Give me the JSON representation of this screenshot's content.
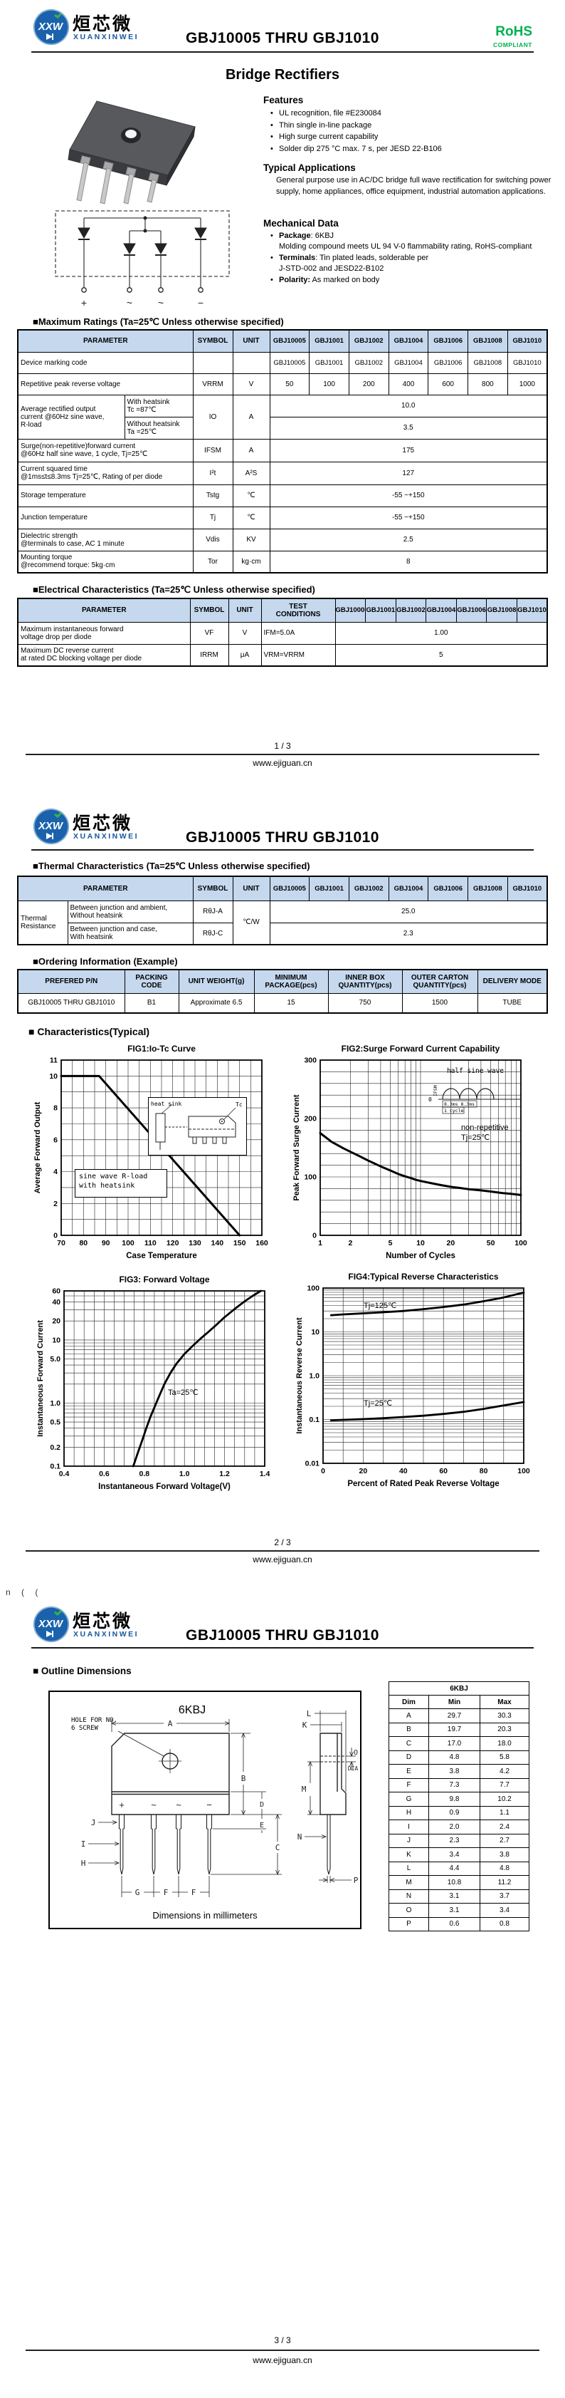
{
  "doc": {
    "brand": {
      "logo_text": "XXW",
      "company_cn": "烜芯微",
      "company_en": "XUANXINWEI"
    },
    "title": "GBJ10005 THRU GBJ1010",
    "rohs": {
      "line1": "RoHS",
      "line2": "COMPLIANT"
    },
    "site": "www.ejiguan.cn",
    "pages": {
      "p1": "1 / 3",
      "p2": "2 / 3",
      "p3": "3 / 3"
    }
  },
  "devices": [
    "GBJ10005",
    "GBJ1001",
    "GBJ1002",
    "GBJ1004",
    "GBJ1006",
    "GBJ1008",
    "GBJ1010"
  ],
  "page1": {
    "product_title": "Bridge Rectifiers",
    "features": {
      "heading": "Features",
      "items": [
        "UL recognition, file #E230084",
        "Thin single in-line package",
        "High surge current capability",
        "Solder dip 275 °C max. 7 s, per JESD 22-B106"
      ]
    },
    "applications": {
      "heading": "Typical Applications",
      "body": "General purpose use in AC/DC bridge full wave rectification for switching power supply, home appliances, office equipment, industrial automation applications."
    },
    "mechanical": {
      "heading": "Mechanical Data",
      "items": [
        {
          "label": "Package",
          "text": ": 6KBJ\nMolding compound meets UL 94 V-0 flammability rating, RoHS-compliant"
        },
        {
          "label": "Terminals",
          "text": ": Tin plated leads, solderable per\nJ-STD-002 and JESD22-B102"
        },
        {
          "label": "Polarity:",
          "text": " As marked on body"
        }
      ]
    },
    "circuit_pins": [
      "+",
      "~",
      "~",
      "−"
    ],
    "max_ratings": {
      "heading": "■Maximum Ratings (Ta=25℃ Unless otherwise specified)",
      "col_headers": {
        "parameter": "PARAMETER",
        "symbol": "SYMBOL",
        "unit": "UNIT"
      },
      "marking": {
        "param": "Device marking code"
      },
      "vrrm": {
        "param": "Repetitive peak reverse voltage",
        "symbol": "VRRM",
        "unit": "V",
        "values": [
          "50",
          "100",
          "200",
          "400",
          "600",
          "800",
          "1000"
        ]
      },
      "io": {
        "param": "Average rectified output\ncurrent  @60Hz sine wave,\nR-load",
        "sub1_line1": "With heatsink",
        "sub1_line2": "Tc =87℃",
        "sub2_line1": "Without heatsink",
        "sub2_line2": "Ta =25℃",
        "symbol": "IO",
        "unit": "A",
        "value1": "10.0",
        "value2": "3.5"
      },
      "rows": [
        {
          "param": "Surge(non-repetitive)forward current\n@60Hz half sine wave, 1 cycle, Tj=25℃",
          "symbol": "IFSM",
          "unit": "A",
          "value": "175"
        },
        {
          "param": "Current squared time\n@1ms≤t≤8.3ms Tj=25℃, Rating of per diode",
          "symbol": "I²t",
          "unit": "A²S",
          "value": "127"
        },
        {
          "param": "Storage temperature",
          "symbol": "Tstg",
          "unit": "℃",
          "value": "-55 ~+150"
        },
        {
          "param": "Junction temperature",
          "symbol": "Tj",
          "unit": "℃",
          "value": "-55 ~+150"
        },
        {
          "param": "Dielectric strength\n@terminals to case, AC 1 minute",
          "symbol": "Vdis",
          "unit": "KV",
          "value": "2.5"
        },
        {
          "param": "Mounting torque\n@recommend torque: 5kg·cm",
          "symbol": "Tor",
          "unit": "kg·cm",
          "value": "8"
        }
      ]
    },
    "electrical": {
      "heading": "■Electrical Characteristics (Ta=25℃ Unless otherwise specified)",
      "col_headers": {
        "parameter": "PARAMETER",
        "symbol": "SYMBOL",
        "unit": "UNIT",
        "test": "TEST\nCONDITIONS"
      },
      "rows": [
        {
          "param": "Maximum instantaneous forward\nvoltage drop per diode",
          "symbol": "VF",
          "unit": "V",
          "test": "IFM=5.0A",
          "value": "1.00"
        },
        {
          "param": "Maximum DC reverse current\nat rated DC blocking voltage per diode",
          "symbol": "IRRM",
          "unit": "μA",
          "test": "VRM=VRRM",
          "value": "5"
        }
      ]
    }
  },
  "page2": {
    "thermal": {
      "heading": "■Thermal Characteristics  (Ta=25℃ Unless otherwise specified)",
      "col_headers": {
        "parameter": "PARAMETER",
        "symbol": "SYMBOL",
        "unit": "UNIT"
      },
      "group": "Thermal\nResistance",
      "unit": "℃/W",
      "rows": [
        {
          "desc": "Between junction and ambient,\nWithout heatsink",
          "symbol": "RθJ-A",
          "value": "25.0"
        },
        {
          "desc": "Between junction and case,\nWith heatsink",
          "symbol": "RθJ-C",
          "value": "2.3"
        }
      ]
    },
    "ordering": {
      "heading": "■Ordering Information (Example)",
      "headers": [
        "PREFERED P/N",
        "PACKING\nCODE",
        "UNIT WEIGHT(g)",
        "MINIMUM\nPACKAGE(pcs)",
        "INNER BOX\nQUANTITY(pcs)",
        "OUTER CARTON\nQUANTITY(pcs)",
        "DELIVERY MODE"
      ],
      "row": [
        "GBJ10005 THRU GBJ1010",
        "B1",
        "Approximate 6.5",
        "15",
        "750",
        "1500",
        "TUBE"
      ]
    },
    "char_heading": "■ Characteristics(Typical)"
  },
  "chart_data": [
    {
      "id": "fig1",
      "type": "line",
      "title": "FIG1:Io-Tc Curve",
      "xlabel": "Case Temperature",
      "ylabel": "Average Forward Output",
      "xscale": "linear",
      "yscale": "linear",
      "xlim": [
        70,
        160
      ],
      "ylim": [
        0,
        11
      ],
      "xticks": [
        70,
        80,
        90,
        100,
        110,
        120,
        130,
        140,
        150,
        160
      ],
      "xtick_labels": [
        "70",
        "80",
        "90",
        "100",
        "110",
        "120",
        "130",
        "140",
        "150",
        "160"
      ],
      "yticks": [
        0,
        2,
        4,
        6,
        8,
        10,
        11
      ],
      "ytick_labels": [
        "0",
        "2",
        "4",
        "6",
        "8",
        "10",
        "11"
      ],
      "xgrid": {
        "type": "linear",
        "step": 5
      },
      "ygrid": {
        "type": "linear",
        "step": 1
      },
      "lw": 3,
      "series": [
        {
          "name": "average forward output current",
          "points": [
            [
              70,
              10
            ],
            [
              87,
              10
            ],
            [
              150,
              0
            ]
          ]
        }
      ],
      "annotations": {
        "box_line1": "sine wave R-load",
        "box_line2": "with heatsink",
        "heatsink": "heat sink",
        "tc": "Tc"
      }
    },
    {
      "id": "fig2",
      "type": "line",
      "title": "FIG2:Surge Forward Current Capability",
      "xlabel": "Number of Cycles",
      "ylabel": "Peak Forward Surge Current",
      "xscale": "log",
      "yscale": "linear",
      "xlim": [
        1,
        100
      ],
      "ylim": [
        0,
        300
      ],
      "xticks": [
        1,
        2,
        5,
        10,
        20,
        50,
        100
      ],
      "xtick_labels": [
        "1",
        "2",
        "5",
        "10",
        "20",
        "50",
        "100"
      ],
      "yticks": [
        0,
        100,
        200,
        300
      ],
      "ytick_labels": [
        "0",
        "100",
        "200",
        "300"
      ],
      "xgrid": {
        "type": "log"
      },
      "ygrid": {
        "type": "linear",
        "step": 20
      },
      "lw": 3,
      "series": [
        {
          "name": "IFSM",
          "points": [
            [
              1,
              175
            ],
            [
              1.3,
              160
            ],
            [
              1.7,
              149
            ],
            [
              2,
              143
            ],
            [
              2.5,
              135
            ],
            [
              3,
              128
            ],
            [
              4,
              118
            ],
            [
              5,
              111
            ],
            [
              6,
              105
            ],
            [
              7,
              101
            ],
            [
              8,
              98
            ],
            [
              9,
              95
            ],
            [
              10,
              93
            ],
            [
              13,
              89
            ],
            [
              16,
              86
            ],
            [
              20,
              83
            ],
            [
              25,
              81
            ],
            [
              30,
              79
            ],
            [
              40,
              77
            ],
            [
              50,
              75
            ],
            [
              65,
              72.5
            ],
            [
              80,
              71
            ],
            [
              100,
              69
            ]
          ]
        }
      ],
      "annotations": {
        "inset_title": "half sine wave",
        "ifsm": "IFSM",
        "ms": "8.3ms 8.3ms",
        "cycle": "1 cycle",
        "zero": "0",
        "note1": "non-repetitive",
        "note2": "Tj=25℃"
      }
    },
    {
      "id": "fig3",
      "type": "line",
      "title": "FIG3: Forward Voltage",
      "xlabel": "Instantaneous Forward Voltage(V)",
      "ylabel": "Instantaneous Forward Current",
      "xscale": "linear",
      "yscale": "log",
      "xlim": [
        0.4,
        1.4
      ],
      "ylim": [
        0.1,
        60
      ],
      "xticks": [
        0.4,
        0.6,
        0.8,
        1.0,
        1.2,
        1.4
      ],
      "xtick_labels": [
        "0.4",
        "0.6",
        "0.8",
        "1.0",
        "1.2",
        "1.4"
      ],
      "yticks": [
        0.1,
        0.2,
        0.5,
        1,
        5,
        10,
        20,
        40,
        60
      ],
      "ytick_labels": [
        "0.1",
        "0.2",
        "0.5",
        "1.0",
        "5.0",
        "10",
        "20",
        "40",
        "60"
      ],
      "xgrid": {
        "type": "linear",
        "step": 0.05
      },
      "ygrid": {
        "type": "log"
      },
      "lw": 2.8,
      "series": [
        {
          "name": "VF @ Ta=25℃",
          "points": [
            [
              0.745,
              0.1
            ],
            [
              0.77,
              0.17
            ],
            [
              0.79,
              0.26
            ],
            [
              0.81,
              0.4
            ],
            [
              0.83,
              0.6
            ],
            [
              0.85,
              0.85
            ],
            [
              0.87,
              1.2
            ],
            [
              0.9,
              2.0
            ],
            [
              0.93,
              3.0
            ],
            [
              0.96,
              4.2
            ],
            [
              1.0,
              6.0
            ],
            [
              1.04,
              8.0
            ],
            [
              1.08,
              10.5
            ],
            [
              1.12,
              13.5
            ],
            [
              1.16,
              17.5
            ],
            [
              1.2,
              23
            ],
            [
              1.25,
              31
            ],
            [
              1.3,
              41
            ],
            [
              1.34,
              50
            ],
            [
              1.38,
              60
            ]
          ]
        }
      ],
      "annotations": {
        "note": "Ta=25℃"
      }
    },
    {
      "id": "fig4",
      "type": "line",
      "title": "FIG4:Typical Reverse Characteristics",
      "xlabel": "Percent of Rated Peak Reverse Voltage",
      "ylabel": "Instantaneous Reverse Current",
      "xscale": "linear",
      "yscale": "log",
      "xlim": [
        0,
        100
      ],
      "ylim": [
        0.01,
        100
      ],
      "xticks": [
        0,
        20,
        40,
        60,
        80,
        100
      ],
      "xtick_labels": [
        "0",
        "20",
        "40",
        "60",
        "80",
        "100"
      ],
      "yticks": [
        0.01,
        0.1,
        1,
        10,
        100
      ],
      "ytick_labels": [
        "0.01",
        "0.1",
        "1.0",
        "10",
        "100"
      ],
      "xgrid": {
        "type": "linear",
        "step": 10
      },
      "ygrid": {
        "type": "log"
      },
      "lw": 2.8,
      "series": [
        {
          "name": "Tj=125℃",
          "points": [
            [
              4,
              24
            ],
            [
              10,
              25
            ],
            [
              20,
              26.5
            ],
            [
              30,
              28
            ],
            [
              40,
              30
            ],
            [
              50,
              33
            ],
            [
              60,
              37
            ],
            [
              70,
              42
            ],
            [
              80,
              50
            ],
            [
              90,
              61
            ],
            [
              100,
              79
            ]
          ]
        },
        {
          "name": "Tj=25℃",
          "points": [
            [
              4,
              0.096
            ],
            [
              10,
              0.098
            ],
            [
              20,
              0.102
            ],
            [
              30,
              0.107
            ],
            [
              40,
              0.114
            ],
            [
              50,
              0.122
            ],
            [
              60,
              0.134
            ],
            [
              70,
              0.15
            ],
            [
              80,
              0.175
            ],
            [
              90,
              0.21
            ],
            [
              100,
              0.25
            ]
          ]
        }
      ],
      "annotations": {
        "hot": "Tj=125℃",
        "cold": "Tj=25℃"
      }
    }
  ],
  "page3": {
    "outline": {
      "heading": "■ Outline Dimensions",
      "package": "6KBJ",
      "hole_note_line1": "HOLE FOR NO.",
      "hole_note_line2": "6 SCREW",
      "dia_label": "DIA",
      "caption": "Dimensions in millimeters",
      "table_title": "6KBJ",
      "col_headers": [
        "Dim",
        "Min",
        "Max"
      ],
      "rows": [
        {
          "dim": "A",
          "min": "29.7",
          "max": "30.3"
        },
        {
          "dim": "B",
          "min": "19.7",
          "max": "20.3"
        },
        {
          "dim": "C",
          "min": "17.0",
          "max": "18.0"
        },
        {
          "dim": "D",
          "min": "4.8",
          "max": "5.8"
        },
        {
          "dim": "E",
          "min": "3.8",
          "max": "4.2"
        },
        {
          "dim": "F",
          "min": "7.3",
          "max": "7.7"
        },
        {
          "dim": "G",
          "min": "9.8",
          "max": "10.2"
        },
        {
          "dim": "H",
          "min": "0.9",
          "max": "1.1"
        },
        {
          "dim": "I",
          "min": "2.0",
          "max": "2.4"
        },
        {
          "dim": "J",
          "min": "2.3",
          "max": "2.7"
        },
        {
          "dim": "K",
          "min": "3.4",
          "max": "3.8"
        },
        {
          "dim": "L",
          "min": "4.4",
          "max": "4.8"
        },
        {
          "dim": "M",
          "min": "10.8",
          "max": "11.2"
        },
        {
          "dim": "N",
          "min": "3.1",
          "max": "3.7"
        },
        {
          "dim": "O",
          "min": "3.1",
          "max": "3.4"
        },
        {
          "dim": "P",
          "min": "0.6",
          "max": "0.8"
        }
      ]
    },
    "artifact": "n (  ("
  }
}
